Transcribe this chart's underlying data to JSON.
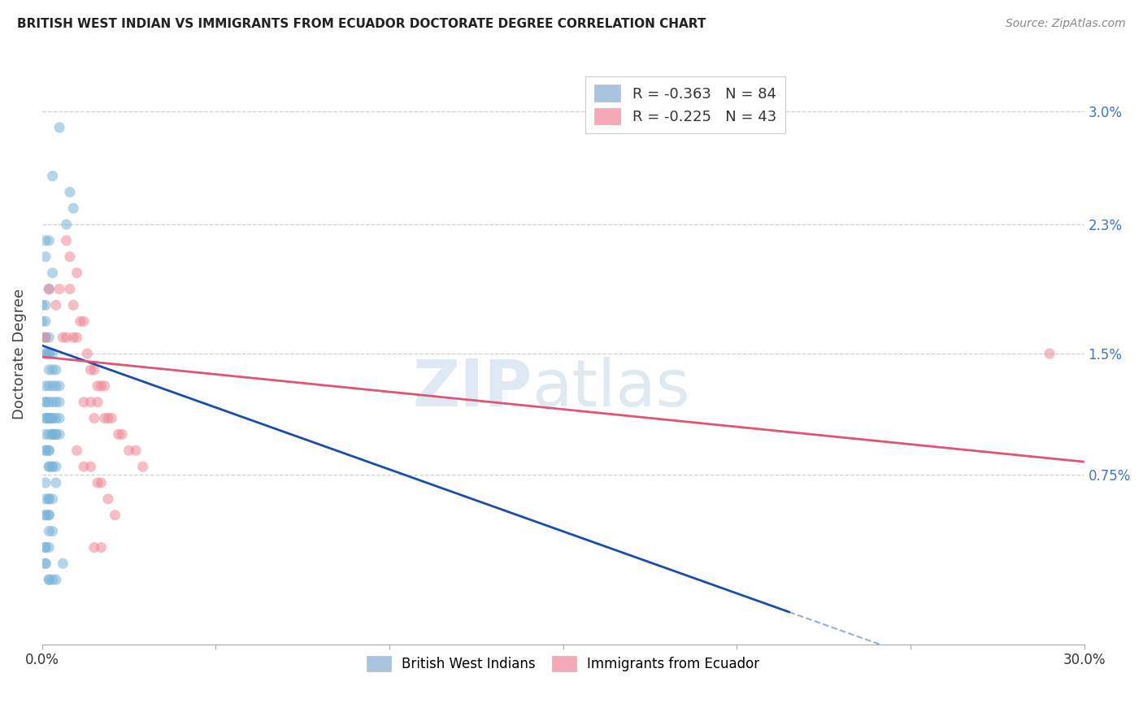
{
  "title": "BRITISH WEST INDIAN VS IMMIGRANTS FROM ECUADOR DOCTORATE DEGREE CORRELATION CHART",
  "source": "Source: ZipAtlas.com",
  "ylabel": "Doctorate Degree",
  "y_ticks_right": [
    "0.75%",
    "1.5%",
    "2.3%",
    "3.0%"
  ],
  "y_ticks_right_vals": [
    0.0075,
    0.015,
    0.023,
    0.03
  ],
  "x_min": 0.0,
  "x_max": 0.3,
  "y_min": -0.003,
  "y_max": 0.033,
  "blue_scatter_x": [
    0.005,
    0.003,
    0.008,
    0.009,
    0.007,
    0.001,
    0.002,
    0.001,
    0.003,
    0.002,
    0.0,
    0.001,
    0.0,
    0.001,
    0.0,
    0.001,
    0.002,
    0.001,
    0.002,
    0.001,
    0.002,
    0.003,
    0.004,
    0.002,
    0.003,
    0.004,
    0.005,
    0.003,
    0.002,
    0.001,
    0.001,
    0.004,
    0.001,
    0.005,
    0.002,
    0.003,
    0.001,
    0.002,
    0.001,
    0.002,
    0.003,
    0.004,
    0.003,
    0.005,
    0.002,
    0.003,
    0.004,
    0.002,
    0.003,
    0.004,
    0.001,
    0.003,
    0.005,
    0.002,
    0.001,
    0.001,
    0.002,
    0.002,
    0.003,
    0.004,
    0.002,
    0.003,
    0.001,
    0.004,
    0.002,
    0.001,
    0.002,
    0.003,
    0.002,
    0.001,
    0.001,
    0.002,
    0.003,
    0.002,
    0.001,
    0.002,
    0.001,
    0.001,
    0.001,
    0.006,
    0.002,
    0.004,
    0.003,
    0.002
  ],
  "blue_scatter_y": [
    0.029,
    0.026,
    0.025,
    0.024,
    0.023,
    0.022,
    0.022,
    0.021,
    0.02,
    0.019,
    0.018,
    0.018,
    0.017,
    0.017,
    0.016,
    0.016,
    0.016,
    0.015,
    0.015,
    0.015,
    0.015,
    0.015,
    0.014,
    0.014,
    0.014,
    0.013,
    0.013,
    0.013,
    0.013,
    0.013,
    0.012,
    0.012,
    0.012,
    0.012,
    0.012,
    0.012,
    0.011,
    0.011,
    0.011,
    0.011,
    0.011,
    0.011,
    0.011,
    0.011,
    0.011,
    0.01,
    0.01,
    0.01,
    0.01,
    0.01,
    0.01,
    0.01,
    0.01,
    0.009,
    0.009,
    0.009,
    0.009,
    0.008,
    0.008,
    0.008,
    0.008,
    0.008,
    0.007,
    0.007,
    0.006,
    0.006,
    0.006,
    0.006,
    0.005,
    0.005,
    0.005,
    0.005,
    0.004,
    0.004,
    0.003,
    0.003,
    0.003,
    0.002,
    0.002,
    0.002,
    0.001,
    0.001,
    0.001,
    0.001
  ],
  "pink_scatter_x": [
    0.001,
    0.002,
    0.004,
    0.005,
    0.007,
    0.008,
    0.008,
    0.009,
    0.01,
    0.011,
    0.012,
    0.006,
    0.007,
    0.009,
    0.01,
    0.013,
    0.014,
    0.015,
    0.016,
    0.017,
    0.018,
    0.012,
    0.014,
    0.016,
    0.019,
    0.02,
    0.015,
    0.018,
    0.022,
    0.023,
    0.025,
    0.027,
    0.029,
    0.01,
    0.012,
    0.014,
    0.016,
    0.017,
    0.019,
    0.021,
    0.015,
    0.017,
    0.29
  ],
  "pink_scatter_y": [
    0.016,
    0.019,
    0.018,
    0.019,
    0.022,
    0.021,
    0.019,
    0.018,
    0.02,
    0.017,
    0.017,
    0.016,
    0.016,
    0.016,
    0.016,
    0.015,
    0.014,
    0.014,
    0.013,
    0.013,
    0.013,
    0.012,
    0.012,
    0.012,
    0.011,
    0.011,
    0.011,
    0.011,
    0.01,
    0.01,
    0.009,
    0.009,
    0.008,
    0.009,
    0.008,
    0.008,
    0.007,
    0.007,
    0.006,
    0.005,
    0.003,
    0.003,
    0.015
  ],
  "blue_line_x0": 0.0,
  "blue_line_y0": 0.0155,
  "blue_line_x1": 0.055,
  "blue_line_y1": 0.008,
  "blue_line_solid_end_x": 0.215,
  "blue_line_solid_end_y": -0.001,
  "pink_line_x0": 0.0,
  "pink_line_y0": 0.0148,
  "pink_line_x1": 0.3,
  "pink_line_y1": 0.0083,
  "scatter_size": 90,
  "scatter_alpha": 0.55,
  "scatter_color_blue": "#7ab3d8",
  "scatter_color_pink": "#f08898",
  "line_color_blue": "#1a4eaa",
  "line_color_pink": "#e05575",
  "watermark_zip_color": "#c8d8e8",
  "watermark_atlas_color": "#b8c8d8",
  "background_color": "#ffffff",
  "grid_color": "#d0d0d0"
}
